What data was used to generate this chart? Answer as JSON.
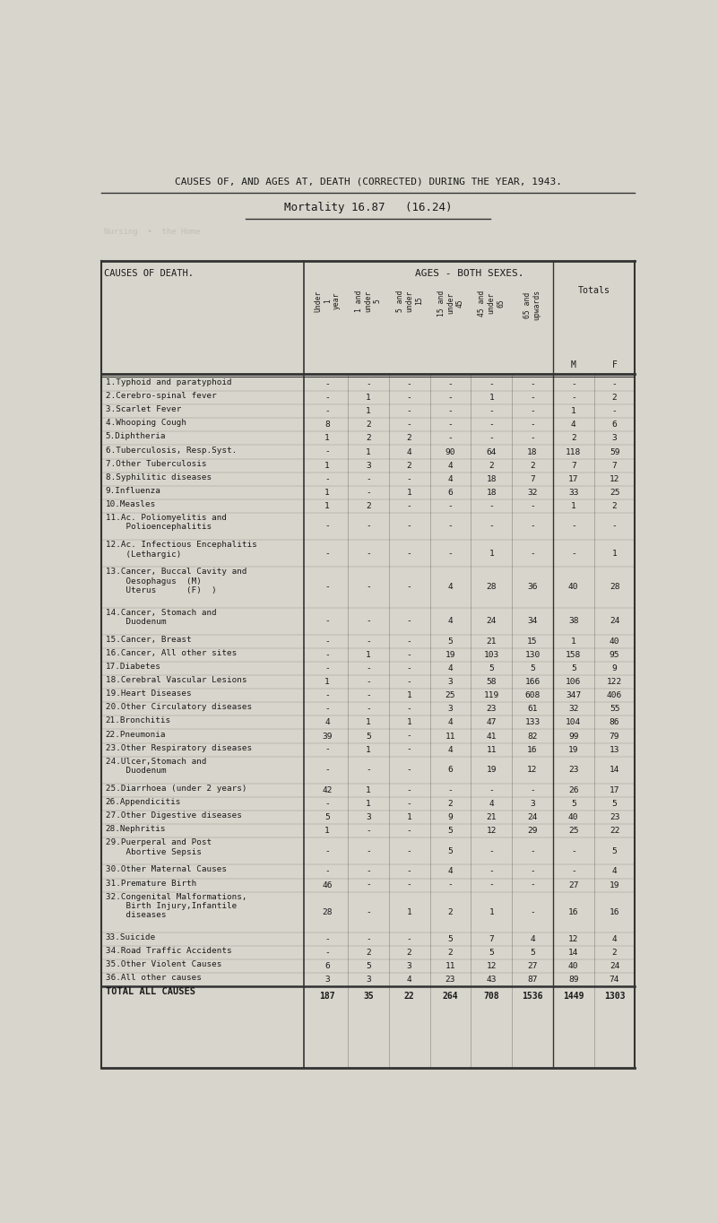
{
  "title": "CAUSES OF, AND AGES AT, DEATH (CORRECTED) DURING THE YEAR, 1943.",
  "subtitle": "Mortality 16.87   (16.24)",
  "causes": [
    "1.Typhoid and paratyphoid",
    "2.Cerebro-spinal fever",
    "3.Scarlet Fever",
    "4.Whooping Cough",
    "5.Diphtheria",
    "6.Tuberculosis, Resp.Syst.",
    "7.Other Tuberculosis",
    "8.Syphilitic diseases",
    "9.Influenza",
    "10.Measles",
    "11.Ac. Poliomyelitis and\n    Polioencephalitis",
    "12.Ac. Infectious Encephalitis\n    (Lethargic)",
    "13.Cancer, Buccal Cavity and\n    Oesophagus  (M)\n    Uterus      (F)  )",
    "14.Cancer, Stomach and\n    Duodenum",
    "15.Cancer, Breast",
    "16.Cancer, All other sites",
    "17.Diabetes",
    "18.Cerebral Vascular Lesions",
    "19.Heart Diseases",
    "20.Other Circulatory diseases",
    "21.Bronchitis",
    "22.Pneumonia",
    "23.Other Respiratory diseases",
    "24.Ulcer,Stomach and\n    Duodenum",
    "25.Diarrhoea (under 2 years)",
    "26.Appendicitis",
    "27.Other Digestive diseases",
    "28.Nephritis",
    "29.Puerperal and Post\n    Abortive Sepsis",
    "30.Other Maternal Causes",
    "31.Premature Birth",
    "32.Congenital Malformations,\n    Birth Injury,Infantile\n    diseases",
    "33.Suicide",
    "34.Road Traffic Accidents",
    "35.Other Violent Causes",
    "36.All other causes",
    "TOTAL ALL CAUSES"
  ],
  "data": [
    [
      "-",
      "-",
      "-",
      "-",
      "-",
      "-",
      "-",
      "-"
    ],
    [
      "-",
      "1",
      "-",
      "-",
      "1",
      "-",
      "-",
      "2"
    ],
    [
      "-",
      "1",
      "-",
      "-",
      "-",
      "-",
      "1",
      "-"
    ],
    [
      "8",
      "2",
      "-",
      "-",
      "-",
      "-",
      "4",
      "6"
    ],
    [
      "1",
      "2",
      "2",
      "-",
      "-",
      "-",
      "2",
      "3"
    ],
    [
      "-",
      "1",
      "4",
      "90",
      "64",
      "18",
      "118",
      "59"
    ],
    [
      "1",
      "3",
      "2",
      "4",
      "2",
      "2",
      "7",
      "7"
    ],
    [
      "-",
      "-",
      "-",
      "4",
      "18",
      "7",
      "17",
      "12"
    ],
    [
      "1",
      "-",
      "1",
      "6",
      "18",
      "32",
      "33",
      "25"
    ],
    [
      "1",
      "2",
      "-",
      "-",
      "-",
      "-",
      "1",
      "2"
    ],
    [
      "-",
      "-",
      "-",
      "-",
      "-",
      "-",
      "-",
      "-"
    ],
    [
      "-",
      "-",
      "-",
      "-",
      "1",
      "-",
      "-",
      "1"
    ],
    [
      "-",
      "-",
      "-",
      "4",
      "28",
      "36",
      "40",
      "28"
    ],
    [
      "-",
      "-",
      "-",
      "4",
      "24",
      "34",
      "38",
      "24"
    ],
    [
      "-",
      "-",
      "-",
      "5",
      "21",
      "15",
      "1",
      "40"
    ],
    [
      "-",
      "1",
      "-",
      "19",
      "103",
      "130",
      "158",
      "95"
    ],
    [
      "-",
      "-",
      "-",
      "4",
      "5",
      "5",
      "5",
      "9"
    ],
    [
      "1",
      "-",
      "-",
      "3",
      "58",
      "166",
      "106",
      "122"
    ],
    [
      "-",
      "-",
      "1",
      "25",
      "119",
      "608",
      "347",
      "406"
    ],
    [
      "-",
      "-",
      "-",
      "3",
      "23",
      "61",
      "32",
      "55"
    ],
    [
      "4",
      "1",
      "1",
      "4",
      "47",
      "133",
      "104",
      "86"
    ],
    [
      "39",
      "5",
      "-",
      "11",
      "41",
      "82",
      "99",
      "79"
    ],
    [
      "-",
      "1",
      "-",
      "4",
      "11",
      "16",
      "19",
      "13"
    ],
    [
      "-",
      "-",
      "-",
      "6",
      "19",
      "12",
      "23",
      "14"
    ],
    [
      "42",
      "1",
      "-",
      "-",
      "-",
      "-",
      "26",
      "17"
    ],
    [
      "-",
      "1",
      "-",
      "2",
      "4",
      "3",
      "5",
      "5"
    ],
    [
      "5",
      "3",
      "1",
      "9",
      "21",
      "24",
      "40",
      "23"
    ],
    [
      "1",
      "-",
      "-",
      "5",
      "12",
      "29",
      "25",
      "22"
    ],
    [
      "-",
      "-",
      "-",
      "5",
      "-",
      "-",
      "-",
      "5"
    ],
    [
      "-",
      "-",
      "-",
      "4",
      "-",
      "-",
      "-",
      "4"
    ],
    [
      "46",
      "-",
      "-",
      "-",
      "-",
      "-",
      "27",
      "19"
    ],
    [
      "28",
      "-",
      "1",
      "2",
      "1",
      "-",
      "16",
      "16"
    ],
    [
      "-",
      "-",
      "-",
      "5",
      "7",
      "4",
      "12",
      "4"
    ],
    [
      "-",
      "2",
      "2",
      "2",
      "5",
      "5",
      "14",
      "2"
    ],
    [
      "6",
      "5",
      "3",
      "11",
      "12",
      "27",
      "40",
      "24"
    ],
    [
      "3",
      "3",
      "4",
      "23",
      "43",
      "87",
      "89",
      "74"
    ],
    [
      "187",
      "35",
      "22",
      "264",
      "708",
      "1536",
      "1449",
      "1303"
    ]
  ],
  "bg_color": "#d8d5cc",
  "text_color": "#1a1a1a",
  "line_color": "#333333",
  "age_labels": [
    "Under\n1\nyear",
    "1 and\nunder\n5",
    "5 and\nunder\n15",
    "15 and\nunder\n45",
    "45 and\nunder\n65",
    "65 and\nupwards"
  ]
}
